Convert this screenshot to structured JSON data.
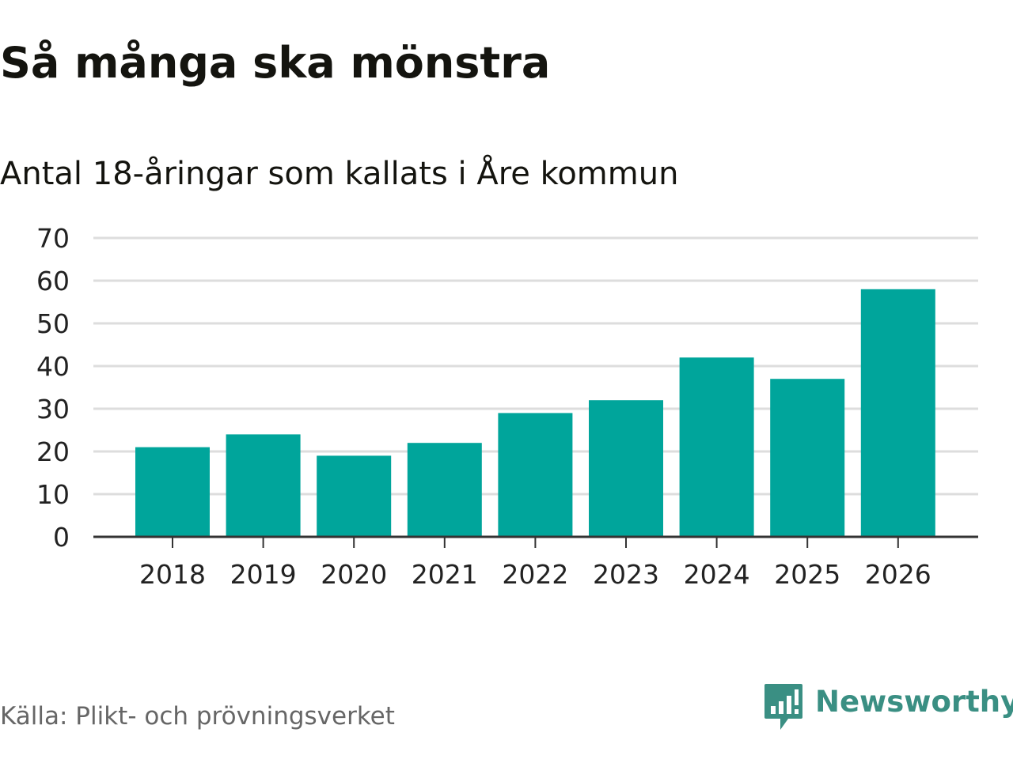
{
  "title": "Så många ska mönstra",
  "subtitle": "Antal 18-åringar som kallats i Åre kommun",
  "source": "Källa: Plikt- och prövningsverket",
  "brand": {
    "name": "Newsworthy",
    "icon": "newsworthy-logo-icon",
    "color": "#3a8f83"
  },
  "colors": {
    "bar": "#00a59b",
    "gridline": "#dddddd",
    "axis": "#333333"
  },
  "chart_data": {
    "type": "bar",
    "title": "Så många ska mönstra",
    "subtitle": "Antal 18-åringar som kallats i Åre kommun",
    "xlabel": "",
    "ylabel": "",
    "categories": [
      "2018",
      "2019",
      "2020",
      "2021",
      "2022",
      "2023",
      "2024",
      "2025",
      "2026"
    ],
    "values": [
      21,
      24,
      19,
      22,
      29,
      32,
      42,
      37,
      58
    ],
    "ylim": [
      0,
      70
    ],
    "yticks": [
      0,
      10,
      20,
      30,
      40,
      50,
      60,
      70
    ],
    "grid": true,
    "legend": "none"
  }
}
